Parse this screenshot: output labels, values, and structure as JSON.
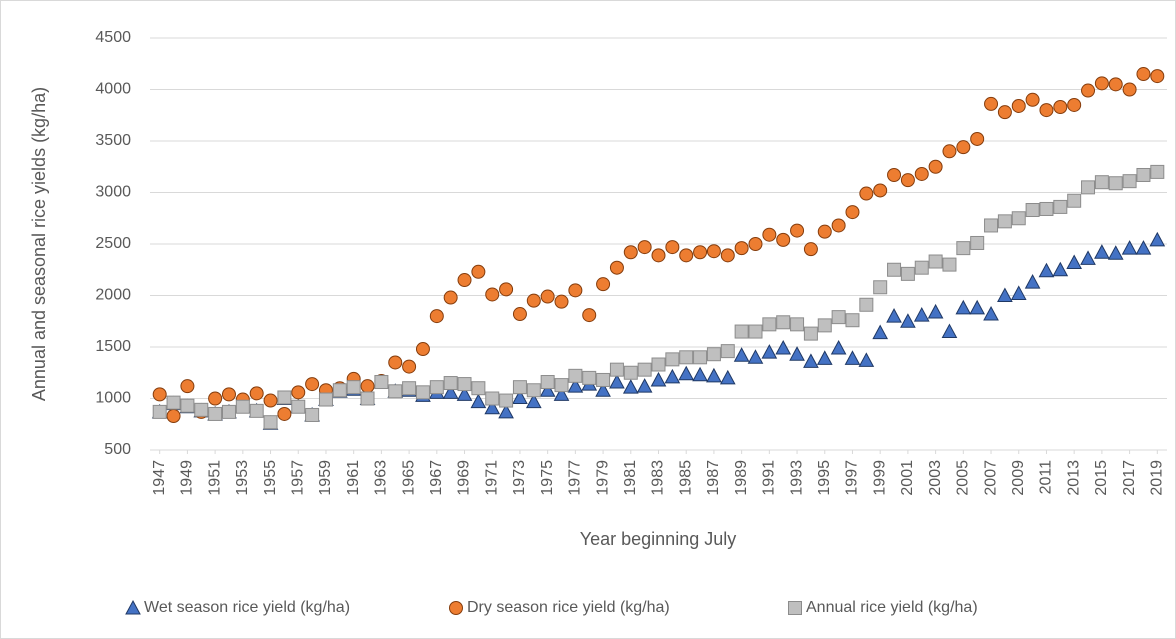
{
  "chart_data": {
    "type": "scatter",
    "x_label": "Year beginning July",
    "y_label": "Annual and seasonal rice yields (kg/ha)",
    "x": [
      1947,
      1948,
      1949,
      1950,
      1951,
      1952,
      1953,
      1954,
      1955,
      1956,
      1957,
      1958,
      1959,
      1960,
      1961,
      1962,
      1963,
      1964,
      1965,
      1966,
      1967,
      1968,
      1969,
      1970,
      1971,
      1972,
      1973,
      1974,
      1975,
      1976,
      1977,
      1978,
      1979,
      1980,
      1981,
      1982,
      1983,
      1984,
      1985,
      1986,
      1987,
      1988,
      1989,
      1990,
      1991,
      1992,
      1993,
      1994,
      1995,
      1996,
      1997,
      1998,
      1999,
      2000,
      2001,
      2002,
      2003,
      2004,
      2005,
      2006,
      2007,
      2008,
      2009,
      2010,
      2011,
      2012,
      2013,
      2014,
      2015,
      2016,
      2017,
      2018,
      2019
    ],
    "xlim": [
      1946.3,
      2019.7
    ],
    "xticks": [
      1947,
      1949,
      1951,
      1953,
      1955,
      1957,
      1959,
      1961,
      1963,
      1965,
      1967,
      1969,
      1971,
      1973,
      1975,
      1977,
      1979,
      1981,
      1983,
      1985,
      1987,
      1989,
      1991,
      1993,
      1995,
      1997,
      1999,
      2001,
      2003,
      2005,
      2007,
      2009,
      2011,
      2013,
      2015,
      2017,
      2019
    ],
    "ylim": [
      500,
      4500
    ],
    "yticks": [
      500,
      1000,
      1500,
      2000,
      2500,
      3000,
      3500,
      4000,
      4500
    ],
    "grid": true,
    "legend": "bottom",
    "series": [
      {
        "name": "Wet season rice yield (kg/ha)",
        "color": "#4472c4",
        "marker": "triangle",
        "values": [
          870,
          950,
          920,
          880,
          850,
          870,
          920,
          880,
          760,
          1000,
          920,
          840,
          990,
          1070,
          1090,
          1000,
          1160,
          1070,
          1080,
          1030,
          1060,
          1060,
          1040,
          970,
          910,
          870,
          1010,
          970,
          1080,
          1040,
          1120,
          1140,
          1080,
          1160,
          1110,
          1120,
          1180,
          1210,
          1240,
          1230,
          1220,
          1200,
          1420,
          1400,
          1450,
          1490,
          1430,
          1360,
          1390,
          1490,
          1390,
          1370,
          1640,
          1800,
          1750,
          1810,
          1840,
          1650,
          1880,
          1880,
          1820,
          2000,
          2020,
          2130,
          2240,
          2250,
          2320,
          2360,
          2420,
          2410,
          2460,
          2460,
          2540
        ]
      },
      {
        "name": "Dry season rice yield (kg/ha)",
        "color": "#ed7d31",
        "marker": "circle",
        "values": [
          1040,
          830,
          1120,
          870,
          1000,
          1040,
          990,
          1050,
          980,
          850,
          1060,
          1140,
          1080,
          1100,
          1190,
          1120,
          1170,
          1350,
          1310,
          1480,
          1800,
          1980,
          2150,
          2230,
          2010,
          2060,
          1820,
          1950,
          1990,
          1940,
          2050,
          1810,
          2110,
          2270,
          2420,
          2470,
          2390,
          2470,
          2390,
          2420,
          2430,
          2390,
          2460,
          2500,
          2590,
          2540,
          2630,
          2450,
          2620,
          2680,
          2810,
          2990,
          3020,
          3170,
          3120,
          3180,
          3250,
          3400,
          3440,
          3520,
          3860,
          3780,
          3840,
          3900,
          3800,
          3830,
          3850,
          3990,
          4060,
          4050,
          4000,
          4150,
          4130
        ]
      },
      {
        "name": "Annual rice yield (kg/ha)",
        "color": "#bfbfbf",
        "marker": "square",
        "values": [
          870,
          960,
          930,
          890,
          850,
          870,
          920,
          880,
          770,
          1010,
          920,
          840,
          990,
          1080,
          1110,
          1000,
          1160,
          1070,
          1100,
          1060,
          1110,
          1150,
          1140,
          1100,
          1000,
          980,
          1110,
          1080,
          1160,
          1130,
          1220,
          1200,
          1180,
          1280,
          1250,
          1280,
          1330,
          1380,
          1400,
          1400,
          1430,
          1460,
          1650,
          1650,
          1720,
          1740,
          1720,
          1630,
          1710,
          1790,
          1760,
          1910,
          2080,
          2250,
          2210,
          2270,
          2330,
          2300,
          2460,
          2510,
          2680,
          2720,
          2750,
          2830,
          2840,
          2860,
          2920,
          3050,
          3100,
          3090,
          3110,
          3170,
          3200
        ]
      }
    ]
  }
}
